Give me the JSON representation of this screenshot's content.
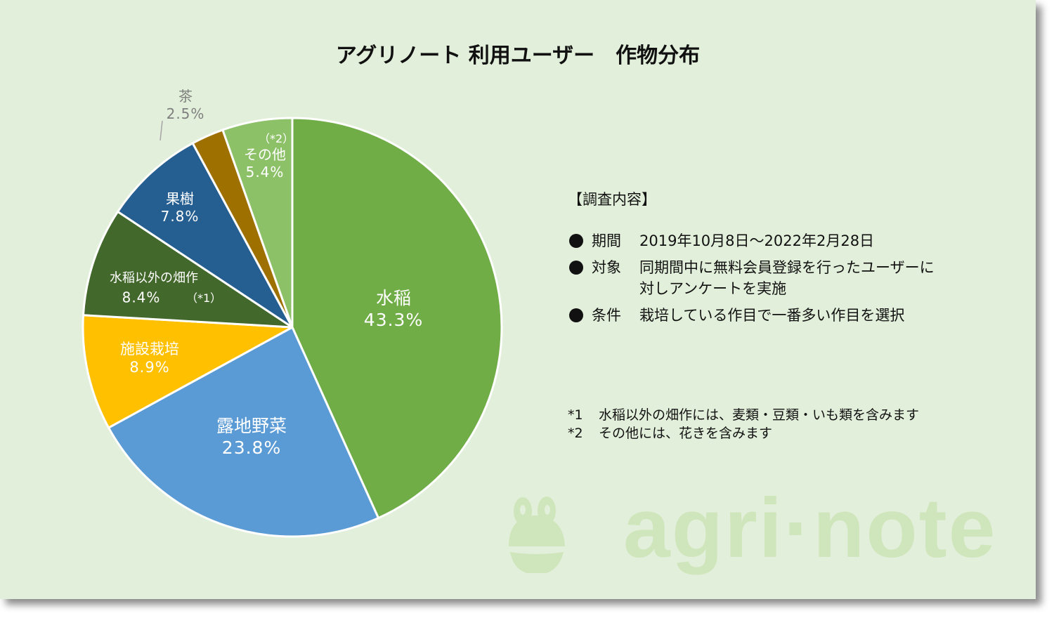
{
  "title": "アグリノート 利用ユーザー　作物分布",
  "colors": {
    "background": "#e2efda",
    "slice_border": "#ffffff",
    "label_text": "#ffffff",
    "outside_label_text": "#7f7f7f",
    "logo": "#cfe5bb"
  },
  "chart_data": {
    "type": "pie",
    "title": "アグリノート 利用ユーザー　作物分布",
    "start_angle": "12 o'clock",
    "direction": "clockwise",
    "categories": [
      "水稲",
      "露地野菜",
      "施設栽培",
      "水稲以外の畑作",
      "果樹",
      "茶",
      "その他"
    ],
    "values": [
      43.3,
      23.8,
      8.9,
      8.4,
      7.8,
      2.5,
      5.4
    ],
    "unit": "%",
    "slices": [
      {
        "name": "水稲",
        "value": 43.3,
        "label": "43.3%",
        "color": "#70ad47",
        "note": ""
      },
      {
        "name": "露地野菜",
        "value": 23.8,
        "label": "23.8%",
        "color": "#5b9bd5",
        "note": ""
      },
      {
        "name": "施設栽培",
        "value": 8.9,
        "label": "8.9%",
        "color": "#ffc000",
        "note": ""
      },
      {
        "name": "水稲以外の畑作",
        "value": 8.4,
        "label": "8.4%",
        "color": "#43682b",
        "note": "（*1）"
      },
      {
        "name": "果樹",
        "value": 7.8,
        "label": "7.8%",
        "color": "#255e91",
        "note": ""
      },
      {
        "name": "茶",
        "value": 2.5,
        "label": "2.5%",
        "color": "#9e7000",
        "note": ""
      },
      {
        "name": "その他",
        "value": 5.4,
        "label": "5.4%",
        "color": "#8cc168",
        "note": "（*2）"
      }
    ]
  },
  "survey": {
    "heading": "【調査内容】",
    "rows": [
      {
        "key": "期間",
        "value": "2019年10月8日～2022年2月28日"
      },
      {
        "key": "対象",
        "value": "同期間中に無料会員登録を行ったユーザーに\n対しアンケートを実施"
      },
      {
        "key": "条件",
        "value": "栽培している作目で一番多い作目を選択"
      }
    ]
  },
  "footnotes": [
    {
      "mark": "*1",
      "text": "水稲以外の畑作には、麦類・豆類・いも類を含みます"
    },
    {
      "mark": "*2",
      "text": "その他には、花きを含みます"
    }
  ],
  "logo": {
    "text": "agri·note",
    "icon": "frog-icon"
  }
}
